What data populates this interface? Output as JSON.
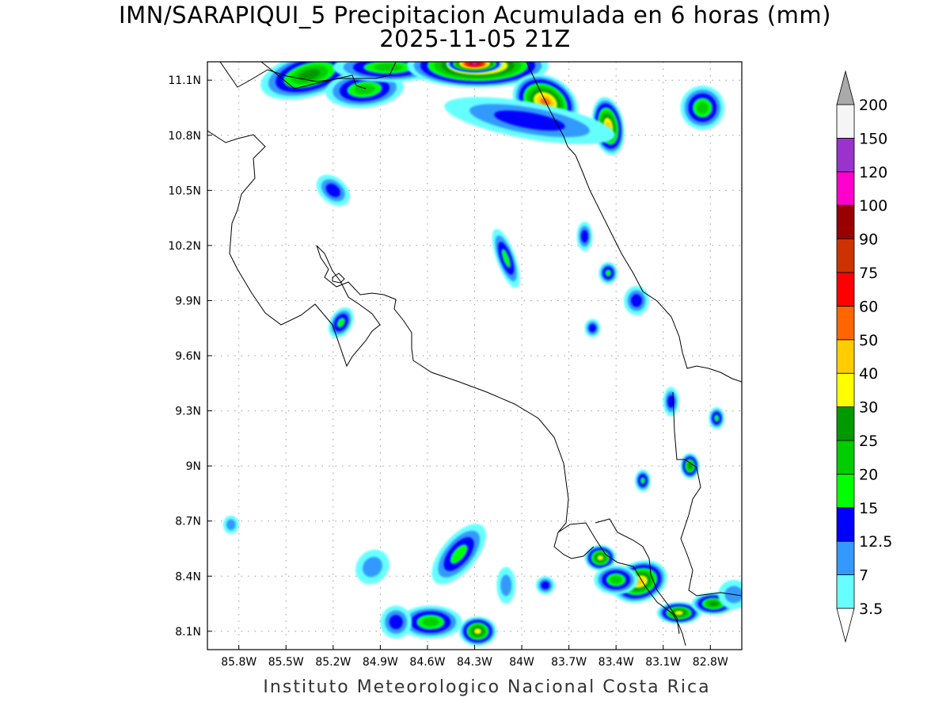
{
  "header": {
    "title": "IMN/SARAPIQUI_5 Precipitacion Acumulada en 6 horas (mm)",
    "subtitle": "2025-11-05 21Z"
  },
  "footer": {
    "credit": "Instituto Meteorologico Nacional Costa Rica"
  },
  "map": {
    "region": "Costa Rica",
    "lon_range": [
      -86.0,
      -82.6
    ],
    "lat_range": [
      8.0,
      11.2
    ],
    "lat_labels": [
      {
        "label": "11.1N",
        "value": 11.1
      },
      {
        "label": "10.8N",
        "value": 10.8
      },
      {
        "label": "10.5N",
        "value": 10.5
      },
      {
        "label": "10.2N",
        "value": 10.2
      },
      {
        "label": "9.9N",
        "value": 9.9
      },
      {
        "label": "9.6N",
        "value": 9.6
      },
      {
        "label": "9.3N",
        "value": 9.3
      },
      {
        "label": "9N",
        "value": 9.0
      },
      {
        "label": "8.7N",
        "value": 8.7
      },
      {
        "label": "8.4N",
        "value": 8.4
      },
      {
        "label": "8.1N",
        "value": 8.1
      }
    ],
    "lon_labels": [
      {
        "label": "85.8W",
        "value": -85.8
      },
      {
        "label": "85.5W",
        "value": -85.5
      },
      {
        "label": "85.2W",
        "value": -85.2
      },
      {
        "label": "84.9W",
        "value": -84.9
      },
      {
        "label": "84.6W",
        "value": -84.6
      },
      {
        "label": "84.3W",
        "value": -84.3
      },
      {
        "label": "84W",
        "value": -84.0
      },
      {
        "label": "83.7W",
        "value": -83.7
      },
      {
        "label": "83.4W",
        "value": -83.4
      },
      {
        "label": "83.1W",
        "value": -83.1
      },
      {
        "label": "82.8W",
        "value": -82.8
      }
    ],
    "grid": true
  },
  "legend": {
    "units": "mm",
    "levels": [
      {
        "label": "3.5",
        "color": "#66ffff"
      },
      {
        "label": "7",
        "color": "#3399ff"
      },
      {
        "label": "12.5",
        "color": "#0000ff"
      },
      {
        "label": "15",
        "color": "#00ff00"
      },
      {
        "label": "20",
        "color": "#00cc00"
      },
      {
        "label": "25",
        "color": "#009900"
      },
      {
        "label": "30",
        "color": "#ffff00"
      },
      {
        "label": "40",
        "color": "#ffcc00"
      },
      {
        "label": "50",
        "color": "#ff6600"
      },
      {
        "label": "60",
        "color": "#ff0000"
      },
      {
        "label": "75",
        "color": "#cc3300"
      },
      {
        "label": "90",
        "color": "#990000"
      },
      {
        "label": "100",
        "color": "#ff00cc"
      },
      {
        "label": "120",
        "color": "#9933cc"
      },
      {
        "label": "150",
        "color": "#f5f5f5"
      },
      {
        "label": "200",
        "color": "#aaaaaa"
      }
    ]
  },
  "precip_cells": [
    {
      "lon": -85.35,
      "lat": 11.13,
      "v": 25,
      "rx": 0.32,
      "ry": 0.12,
      "rot": -15
    },
    {
      "lon": -85.0,
      "lat": 11.05,
      "v": 20,
      "rx": 0.25,
      "ry": 0.1,
      "rot": -5
    },
    {
      "lon": -84.85,
      "lat": 11.17,
      "v": 20,
      "rx": 0.35,
      "ry": 0.08,
      "rot": 0
    },
    {
      "lon": -84.28,
      "lat": 11.18,
      "v": 60,
      "rx": 0.45,
      "ry": 0.12,
      "rot": 0
    },
    {
      "lon": -84.3,
      "lat": 11.19,
      "v": 100,
      "rx": 0.18,
      "ry": 0.05,
      "rot": 0
    },
    {
      "lon": -83.85,
      "lat": 10.98,
      "v": 50,
      "rx": 0.22,
      "ry": 0.14,
      "rot": 30
    },
    {
      "lon": -83.45,
      "lat": 10.85,
      "v": 40,
      "rx": 0.1,
      "ry": 0.16,
      "rot": -10
    },
    {
      "lon": -83.95,
      "lat": 10.88,
      "v": 12.5,
      "rx": 0.55,
      "ry": 0.1,
      "rot": 10
    },
    {
      "lon": -82.85,
      "lat": 10.95,
      "v": 20,
      "rx": 0.14,
      "ry": 0.12,
      "rot": 0
    },
    {
      "lon": -85.2,
      "lat": 10.5,
      "v": 12.5,
      "rx": 0.12,
      "ry": 0.07,
      "rot": 40
    },
    {
      "lon": -84.1,
      "lat": 10.13,
      "v": 15,
      "rx": 0.06,
      "ry": 0.17,
      "rot": -20
    },
    {
      "lon": -83.6,
      "lat": 10.25,
      "v": 12.5,
      "rx": 0.05,
      "ry": 0.08,
      "rot": 0
    },
    {
      "lon": -83.45,
      "lat": 10.05,
      "v": 15,
      "rx": 0.06,
      "ry": 0.06,
      "rot": 0
    },
    {
      "lon": -83.27,
      "lat": 9.9,
      "v": 12.5,
      "rx": 0.08,
      "ry": 0.08,
      "rot": 0
    },
    {
      "lon": -85.15,
      "lat": 9.78,
      "v": 15,
      "rx": 0.07,
      "ry": 0.09,
      "rot": 30
    },
    {
      "lon": -83.55,
      "lat": 9.75,
      "v": 12.5,
      "rx": 0.05,
      "ry": 0.05,
      "rot": 0
    },
    {
      "lon": -83.05,
      "lat": 9.35,
      "v": 12.5,
      "rx": 0.05,
      "ry": 0.08,
      "rot": 0
    },
    {
      "lon": -82.76,
      "lat": 9.26,
      "v": 15,
      "rx": 0.05,
      "ry": 0.06,
      "rot": 0
    },
    {
      "lon": -82.93,
      "lat": 9.0,
      "v": 25,
      "rx": 0.06,
      "ry": 0.07,
      "rot": 0
    },
    {
      "lon": -83.23,
      "lat": 8.92,
      "v": 15,
      "rx": 0.05,
      "ry": 0.06,
      "rot": 0
    },
    {
      "lon": -84.4,
      "lat": 8.52,
      "v": 15,
      "rx": 0.11,
      "ry": 0.2,
      "rot": 40
    },
    {
      "lon": -84.58,
      "lat": 8.15,
      "v": 20,
      "rx": 0.2,
      "ry": 0.09,
      "rot": 0
    },
    {
      "lon": -84.28,
      "lat": 8.1,
      "v": 30,
      "rx": 0.12,
      "ry": 0.08,
      "rot": 0
    },
    {
      "lon": -83.5,
      "lat": 8.5,
      "v": 30,
      "rx": 0.1,
      "ry": 0.07,
      "rot": 0
    },
    {
      "lon": -83.25,
      "lat": 8.37,
      "v": 40,
      "rx": 0.18,
      "ry": 0.11,
      "rot": -20
    },
    {
      "lon": -83.0,
      "lat": 8.2,
      "v": 30,
      "rx": 0.14,
      "ry": 0.06,
      "rot": 0
    },
    {
      "lon": -82.78,
      "lat": 8.25,
      "v": 25,
      "rx": 0.14,
      "ry": 0.06,
      "rot": 0
    },
    {
      "lon": -83.4,
      "lat": 8.38,
      "v": 20,
      "rx": 0.14,
      "ry": 0.08,
      "rot": 0
    },
    {
      "lon": -84.8,
      "lat": 8.15,
      "v": 12.5,
      "rx": 0.1,
      "ry": 0.09,
      "rot": 0
    },
    {
      "lon": -85.85,
      "lat": 8.68,
      "v": 7,
      "rx": 0.05,
      "ry": 0.05,
      "rot": 0
    },
    {
      "lon": -82.65,
      "lat": 8.3,
      "v": 7,
      "rx": 0.1,
      "ry": 0.08,
      "rot": 0
    },
    {
      "lon": -83.85,
      "lat": 8.35,
      "v": 12.5,
      "rx": 0.06,
      "ry": 0.05,
      "rot": 0
    },
    {
      "lon": -84.95,
      "lat": 8.45,
      "v": 7,
      "rx": 0.1,
      "ry": 0.1,
      "rot": 40
    },
    {
      "lon": -84.1,
      "lat": 8.35,
      "v": 7,
      "rx": 0.06,
      "ry": 0.1,
      "rot": 0
    }
  ]
}
